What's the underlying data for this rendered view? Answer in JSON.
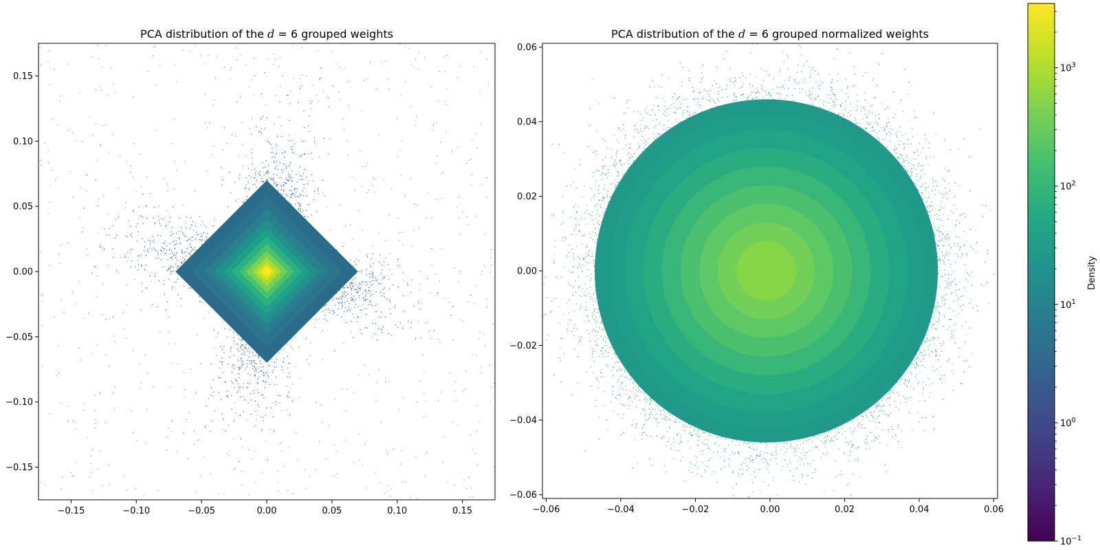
{
  "chart_data": [
    {
      "type": "heatmap",
      "title_prefix": "PCA distribution of the ",
      "title_math": "d",
      "title_math_rest": " = 6",
      "title_suffix": " grouped weights",
      "xlabel": "",
      "ylabel": "",
      "xlim": [
        -0.175,
        0.175
      ],
      "ylim": [
        -0.175,
        0.175
      ],
      "xticks": [
        -0.15,
        -0.1,
        -0.05,
        0.0,
        0.05,
        0.1,
        0.15
      ],
      "xtick_labels": [
        "−0.15",
        "−0.10",
        "−0.05",
        "0.00",
        "0.05",
        "0.10",
        "0.15"
      ],
      "yticks": [
        -0.15,
        -0.1,
        -0.05,
        0.0,
        0.05,
        0.1,
        0.15
      ],
      "ytick_labels": [
        "−0.15",
        "−0.10",
        "−0.05",
        "0.00",
        "0.05",
        "0.10",
        "0.15"
      ],
      "distribution": "star",
      "center": [
        0.0,
        0.0
      ],
      "peak_density": 3000,
      "grid": false
    },
    {
      "type": "heatmap",
      "title_prefix": "PCA distribution of the ",
      "title_math": "d",
      "title_math_rest": " = 6",
      "title_suffix": " grouped normalized weights",
      "xlabel": "",
      "ylabel": "",
      "xlim": [
        -0.061,
        0.061
      ],
      "ylim": [
        -0.061,
        0.061
      ],
      "xticks": [
        -0.06,
        -0.04,
        -0.02,
        0.0,
        0.02,
        0.04,
        0.06
      ],
      "xtick_labels": [
        "−0.06",
        "−0.04",
        "−0.02",
        "0.00",
        "0.02",
        "0.04",
        "0.06"
      ],
      "yticks": [
        -0.06,
        -0.04,
        -0.02,
        0.0,
        0.02,
        0.04,
        0.06
      ],
      "ytick_labels": [
        "−0.06",
        "−0.04",
        "−0.02",
        "0.00",
        "0.02",
        "0.04",
        "0.06"
      ],
      "distribution": "disk",
      "center": [
        -0.001,
        0.0
      ],
      "peak_density": 500,
      "grid": false
    }
  ],
  "colorbar": {
    "label": "Density",
    "scale": "log",
    "colormap": "viridis",
    "range": [
      0.1,
      3500
    ],
    "ticks": [
      {
        "value": 0.1,
        "base": "10",
        "exp": "−1"
      },
      {
        "value": 1,
        "base": "10",
        "exp": "0"
      },
      {
        "value": 10,
        "base": "10",
        "exp": "1"
      },
      {
        "value": 100,
        "base": "10",
        "exp": "2"
      },
      {
        "value": 1000,
        "base": "10",
        "exp": "3"
      }
    ]
  }
}
